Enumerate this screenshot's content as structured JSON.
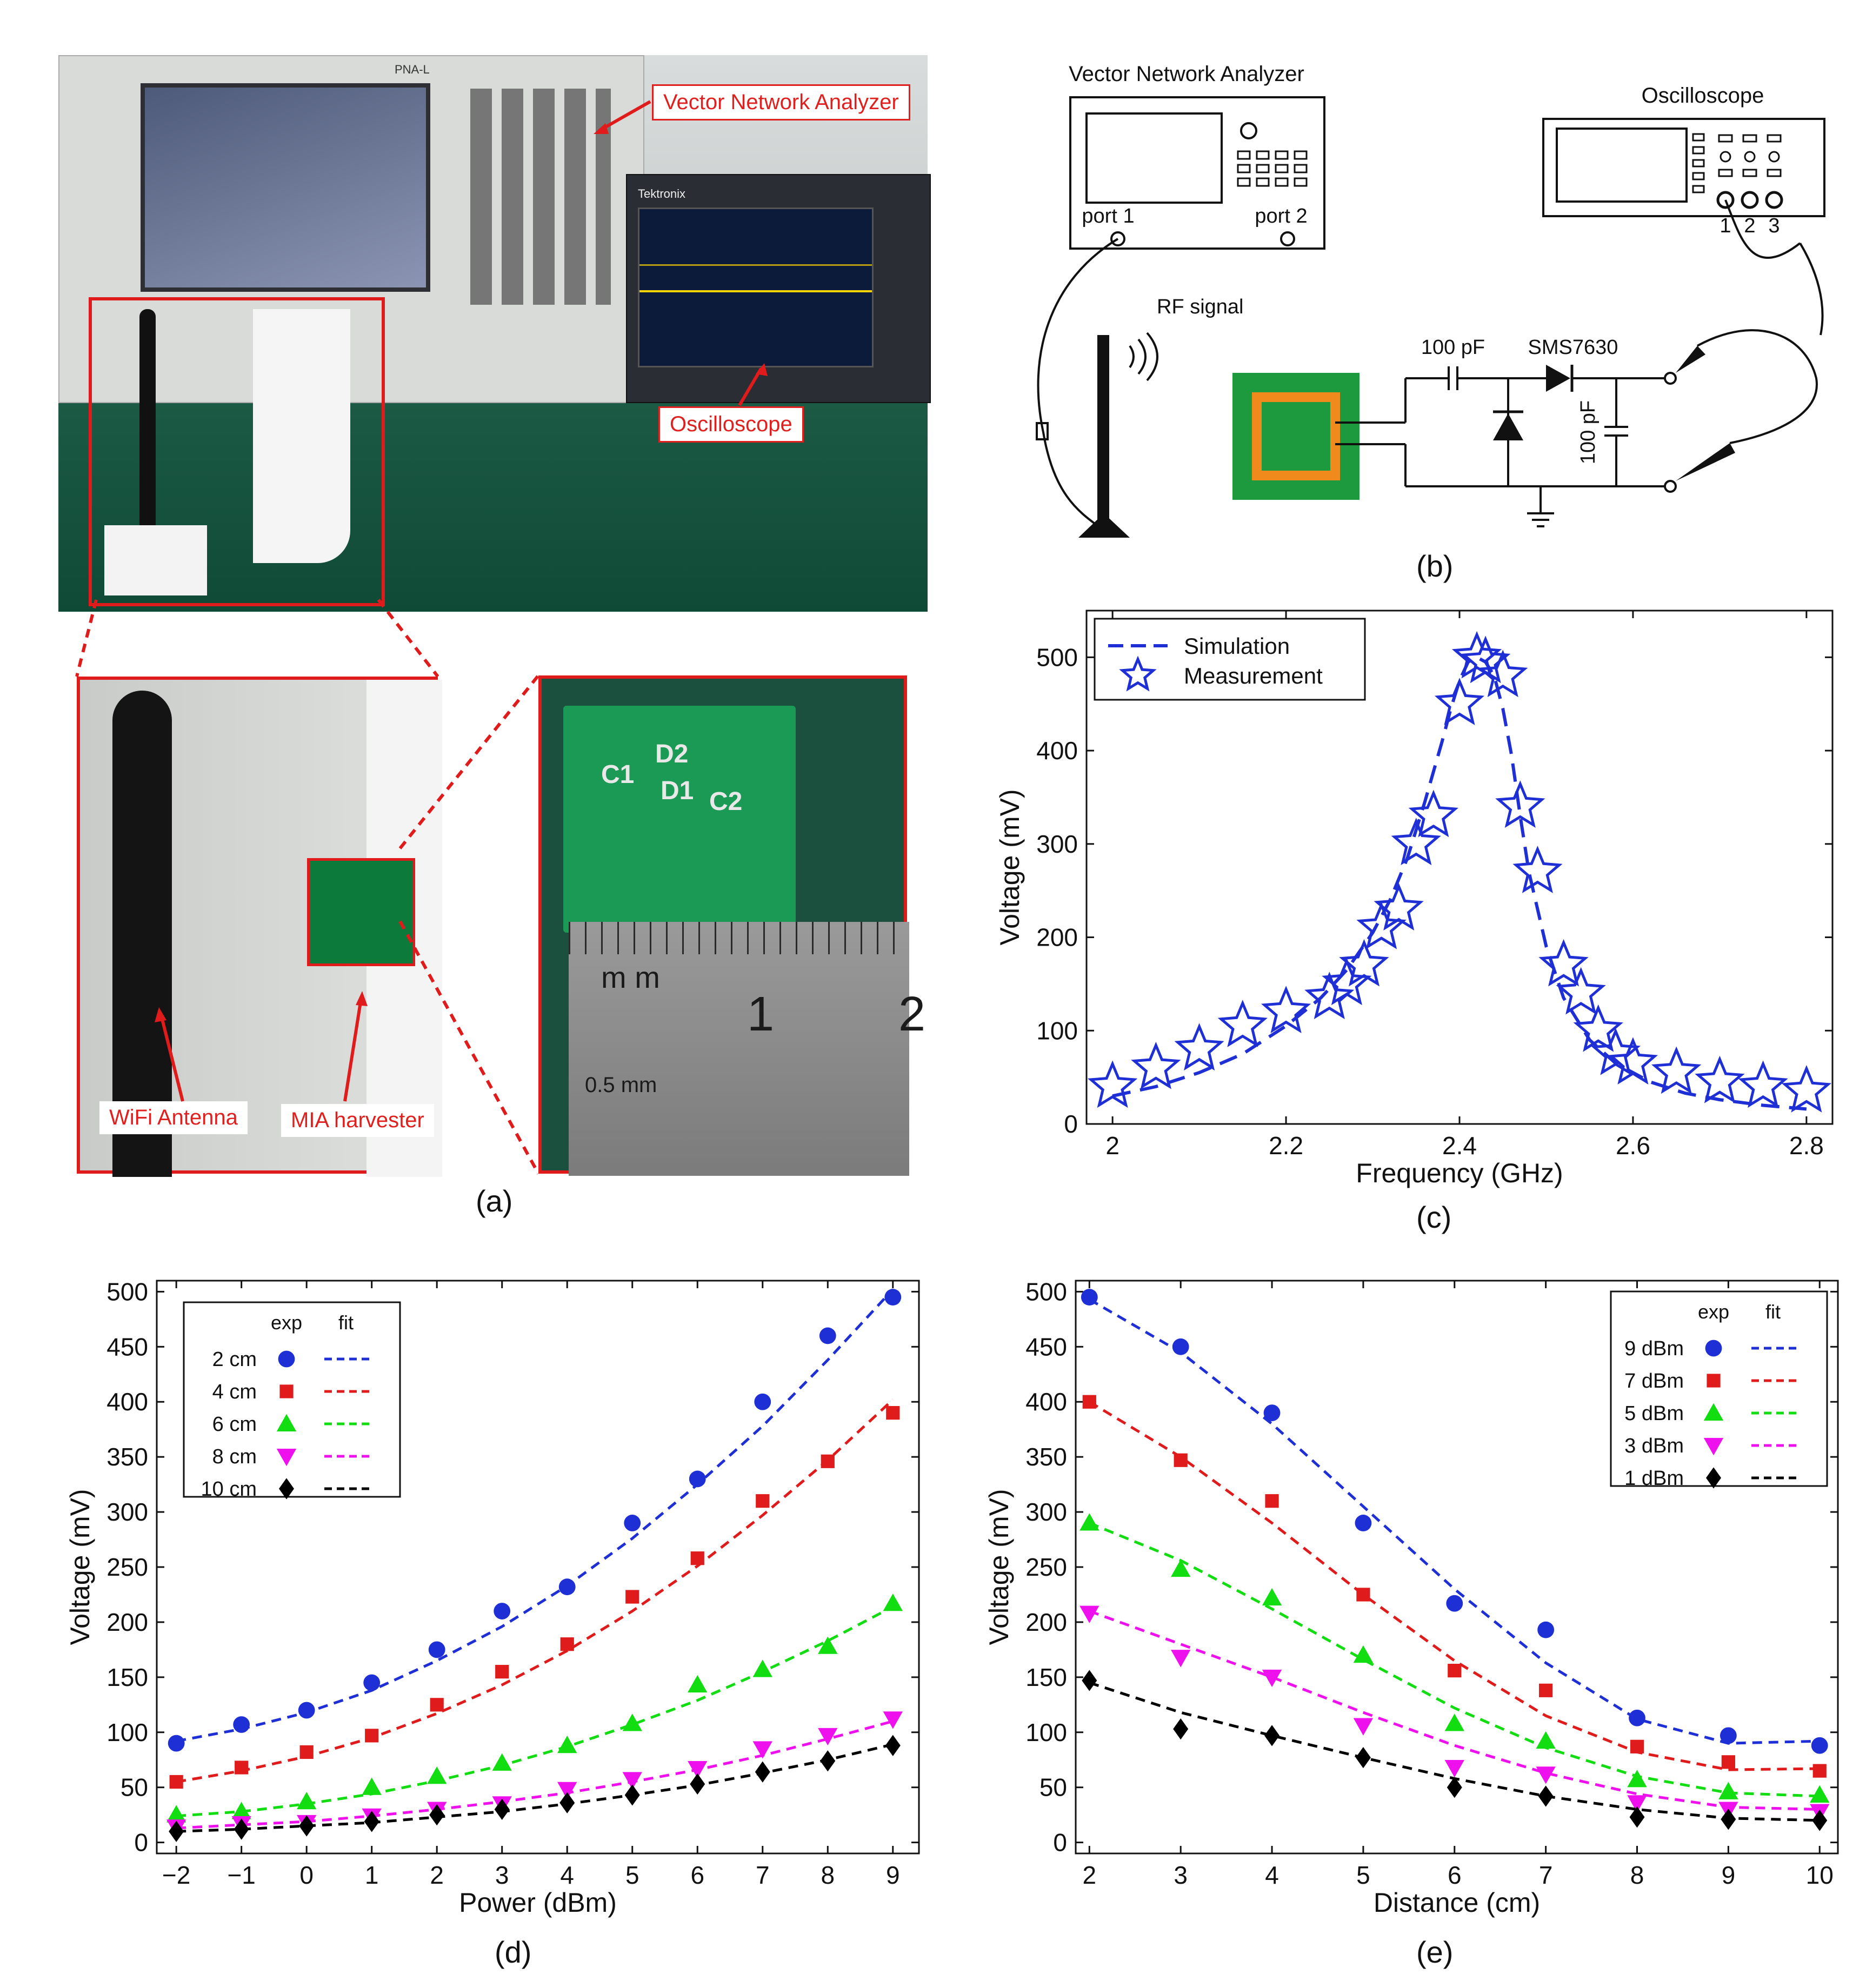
{
  "panels": {
    "a": "(a)",
    "b": "(b)",
    "c": "(c)",
    "d": "(d)",
    "e": "(e)"
  },
  "photo_a": {
    "label_vna": "Vector Network Analyzer",
    "label_osc": "Oscilloscope",
    "label_wifi": "WiFi Antenna",
    "label_mia": "MIA harvester",
    "instrument_brand": "PNA-L",
    "scope_brand": "Tektronix",
    "ruler_unit": "m m",
    "ruler_tick1": "1",
    "ruler_tick2": "2",
    "ruler_sub": "0.5 mm",
    "pcb_c1": "C1",
    "pcb_d2": "D2",
    "pcb_d1": "D1",
    "pcb_c2": "C2"
  },
  "schematic_b": {
    "vna_title": "Vector Network Analyzer",
    "port1": "port 1",
    "port2": "port 2",
    "osc_title": "Oscilloscope",
    "ch1": "1",
    "ch2": "2",
    "ch3": "3",
    "rf_signal": "RF signal",
    "cap1": "100 pF",
    "diode": "SMS7630",
    "cap2": "100 pF"
  },
  "chart_data": [
    {
      "id": "c",
      "type": "line",
      "xlabel": "Frequency (GHz)",
      "ylabel": "Voltage (mV)",
      "xlim": [
        1.97,
        2.83
      ],
      "ylim": [
        0,
        550
      ],
      "xticks": [
        2,
        2.2,
        2.4,
        2.6,
        2.8
      ],
      "xtick_labels": [
        "2",
        "2.2",
        "2.4",
        "2.6",
        "2.8"
      ],
      "yticks": [
        0,
        100,
        200,
        300,
        400,
        500
      ],
      "legend_position": "top-left",
      "series": [
        {
          "name": "Simulation",
          "style": "dashed",
          "color": "#1f2fd6",
          "x": [
            2.0,
            2.05,
            2.1,
            2.15,
            2.2,
            2.24,
            2.27,
            2.3,
            2.32,
            2.34,
            2.36,
            2.38,
            2.39,
            2.4,
            2.41,
            2.42,
            2.43,
            2.44,
            2.45,
            2.46,
            2.47,
            2.48,
            2.5,
            2.52,
            2.55,
            2.58,
            2.62,
            2.66,
            2.7,
            2.75,
            2.8
          ],
          "y": [
            30,
            40,
            55,
            75,
            105,
            135,
            165,
            205,
            240,
            285,
            345,
            410,
            445,
            475,
            495,
            500,
            495,
            480,
            445,
            395,
            330,
            270,
            190,
            135,
            90,
            65,
            45,
            33,
            26,
            20,
            16
          ]
        },
        {
          "name": "Measurement",
          "style": "star",
          "color": "#1f2fd6",
          "x": [
            2.0,
            2.05,
            2.1,
            2.15,
            2.2,
            2.25,
            2.27,
            2.29,
            2.31,
            2.33,
            2.35,
            2.37,
            2.4,
            2.42,
            2.43,
            2.45,
            2.47,
            2.49,
            2.52,
            2.54,
            2.56,
            2.58,
            2.6,
            2.65,
            2.7,
            2.75,
            2.8
          ],
          "y": [
            40,
            60,
            80,
            105,
            120,
            135,
            150,
            170,
            210,
            230,
            300,
            330,
            450,
            500,
            495,
            480,
            340,
            270,
            170,
            140,
            100,
            75,
            65,
            55,
            45,
            40,
            35
          ]
        }
      ]
    },
    {
      "id": "d",
      "type": "scatter",
      "xlabel": "Power (dBm)",
      "ylabel": "Voltage (mV)",
      "xlim": [
        -2.3,
        9.4
      ],
      "ylim": [
        -10,
        510
      ],
      "xticks": [
        -2,
        -1,
        0,
        1,
        2,
        3,
        4,
        5,
        6,
        7,
        8,
        9
      ],
      "xtick_labels": [
        "−2",
        "−1",
        "0",
        "1",
        "2",
        "3",
        "4",
        "5",
        "6",
        "7",
        "8",
        "9"
      ],
      "yticks": [
        0,
        50,
        100,
        150,
        200,
        250,
        300,
        350,
        400,
        450,
        500
      ],
      "legend_position": "top-left",
      "legend_headers": [
        "exp",
        "fit"
      ],
      "x": [
        -2,
        -1,
        0,
        1,
        2,
        3,
        4,
        5,
        6,
        7,
        8,
        9
      ],
      "series": [
        {
          "name": "2 cm",
          "marker": "circle",
          "color": "#1f2fd6",
          "values": [
            90,
            107,
            120,
            145,
            175,
            210,
            232,
            290,
            330,
            400,
            460,
            495
          ],
          "fit": [
            92,
            103,
            118,
            138,
            165,
            196,
            233,
            276,
            325,
            378,
            438,
            502
          ]
        },
        {
          "name": "4 cm",
          "marker": "square",
          "color": "#e01b1b",
          "values": [
            55,
            68,
            82,
            97,
            125,
            155,
            180,
            223,
            258,
            310,
            346,
            390
          ],
          "fit": [
            55,
            65,
            78,
            95,
            117,
            143,
            174,
            210,
            251,
            297,
            347,
            402
          ]
        },
        {
          "name": "6 cm",
          "marker": "triangle-up",
          "color": "#11dd11",
          "values": [
            25,
            28,
            37,
            50,
            60,
            72,
            88,
            108,
            143,
            157,
            178,
            217
          ],
          "fit": [
            24,
            28,
            35,
            44,
            56,
            70,
            87,
            107,
            129,
            155,
            183,
            214
          ]
        },
        {
          "name": "8 cm",
          "marker": "triangle-down",
          "color": "#ee11ee",
          "values": [
            14,
            17,
            18,
            24,
            30,
            35,
            48,
            57,
            67,
            85,
            97,
            112
          ],
          "fit": [
            13,
            16,
            19,
            24,
            30,
            37,
            45,
            55,
            66,
            79,
            94,
            110
          ]
        },
        {
          "name": "10 cm",
          "marker": "diamond",
          "color": "#000000",
          "values": [
            10,
            12,
            15,
            19,
            25,
            30,
            36,
            43,
            53,
            64,
            74,
            88
          ],
          "fit": [
            10,
            12,
            15,
            18,
            23,
            28,
            35,
            43,
            52,
            63,
            75,
            89
          ]
        }
      ]
    },
    {
      "id": "e",
      "type": "scatter",
      "xlabel": "Distance (cm)",
      "ylabel": "Voltage (mV)",
      "xlim": [
        1.85,
        10.2
      ],
      "ylim": [
        -10,
        510
      ],
      "xticks": [
        2,
        3,
        4,
        5,
        6,
        7,
        8,
        9,
        10
      ],
      "xtick_labels": [
        "2",
        "3",
        "4",
        "5",
        "6",
        "7",
        "8",
        "9",
        "10"
      ],
      "yticks": [
        0,
        50,
        100,
        150,
        200,
        250,
        300,
        350,
        400,
        450,
        500
      ],
      "legend_position": "top-right",
      "legend_headers": [
        "exp",
        "fit"
      ],
      "x": [
        2,
        3,
        4,
        5,
        6,
        7,
        8,
        9,
        10
      ],
      "series": [
        {
          "name": "9 dBm",
          "marker": "circle",
          "color": "#1f2fd6",
          "values": [
            495,
            450,
            390,
            290,
            217,
            193,
            113,
            97,
            88
          ],
          "fit": [
            493,
            445,
            380,
            305,
            230,
            163,
            112,
            90,
            92
          ]
        },
        {
          "name": "7 dBm",
          "marker": "square",
          "color": "#e01b1b",
          "values": [
            400,
            347,
            310,
            225,
            156,
            138,
            87,
            73,
            65
          ],
          "fit": [
            400,
            350,
            290,
            225,
            165,
            115,
            82,
            66,
            67
          ]
        },
        {
          "name": "5 dBm",
          "marker": "triangle-up",
          "color": "#11dd11",
          "values": [
            290,
            248,
            222,
            170,
            108,
            92,
            57,
            46,
            43
          ],
          "fit": [
            290,
            256,
            212,
            166,
            122,
            86,
            60,
            45,
            42
          ]
        },
        {
          "name": "3 dBm",
          "marker": "triangle-down",
          "color": "#ee11ee",
          "values": [
            208,
            168,
            150,
            106,
            68,
            62,
            36,
            30,
            28
          ],
          "fit": [
            210,
            180,
            150,
            118,
            88,
            63,
            44,
            32,
            30
          ]
        },
        {
          "name": "1 dBm",
          "marker": "diamond",
          "color": "#000000",
          "values": [
            147,
            103,
            97,
            77,
            50,
            42,
            23,
            21,
            20
          ],
          "fit": [
            145,
            118,
            97,
            77,
            58,
            42,
            30,
            22,
            20
          ]
        }
      ]
    }
  ]
}
